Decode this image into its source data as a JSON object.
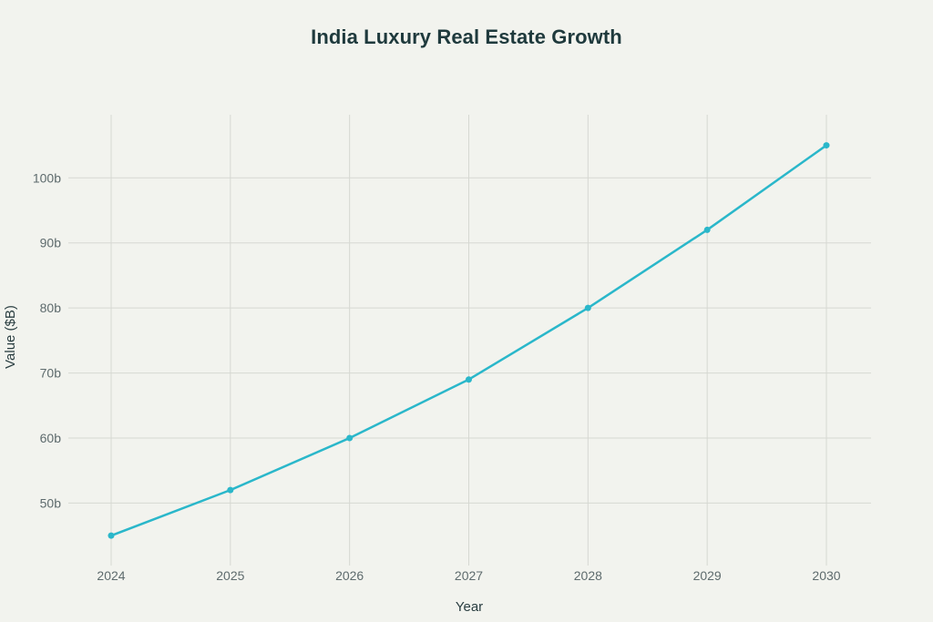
{
  "chart_data": {
    "type": "line",
    "title": "India Luxury Real Estate Growth",
    "xlabel": "Year",
    "ylabel": "Value ($B)",
    "x": [
      "2024",
      "2025",
      "2026",
      "2027",
      "2028",
      "2029",
      "2030"
    ],
    "series": [
      {
        "values": [
          45,
          52,
          60,
          69,
          80,
          92,
          105
        ],
        "color": "#2ab7ca"
      }
    ],
    "yticks": [
      50,
      60,
      70,
      80,
      90,
      100
    ],
    "ytick_labels": [
      "50b",
      "60b",
      "70b",
      "80b",
      "90b",
      "100b"
    ],
    "ylim": [
      40.4,
      109.7
    ],
    "grid": true,
    "legend": "none"
  }
}
